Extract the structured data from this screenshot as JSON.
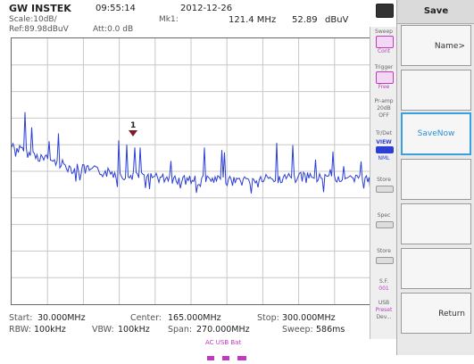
{
  "header": {
    "brand": "GW INSTEK",
    "time": "09:55:14",
    "date": "2012-12-26",
    "scale": "Scale:10dB/",
    "ref": "Ref:89.98dBuV",
    "att": "Att:0.0 dB",
    "marker_label": "Mk1:",
    "marker_freq": "121.4 MHz",
    "marker_level": "52.89",
    "marker_unit": "dBuV"
  },
  "trace": {
    "marker_number": "1",
    "color": "#2b3fd4"
  },
  "side": {
    "sweep": "Sweep",
    "sweep_mode": "Cont",
    "trigger": "Trigger",
    "trigger_mode": "Free",
    "preamp": "Pr-amp",
    "preamp_val": "20dB",
    "preamp_state": "OFF",
    "trace_label": "Tr/Det",
    "trace_mode": "VIEW",
    "trace_det": "NML",
    "s1": "Store",
    "s2": "Spec",
    "s3": "Store",
    "sf": "S.F.",
    "sf_val": "001",
    "usb": "USB",
    "usb_mode": "Preset",
    "dev": "Dev..."
  },
  "softkeys": {
    "title": "Save",
    "name": "Name>",
    "save_now": "SaveNow",
    "return": "Return"
  },
  "footer": {
    "start_label": "Start:",
    "start": "30.000MHz",
    "center_label": "Center:",
    "center": "165.000MHz",
    "stop_label": "Stop:",
    "stop": "300.000MHz",
    "rbw_label": "RBW:",
    "rbw": "100kHz",
    "vbw_label": "VBW:",
    "vbw": "100kHz",
    "span_label": "Span:",
    "span": "270.000MHz",
    "sweep_label": "Sweep:",
    "sweep": "586ms",
    "status": "AC USB Bat"
  }
}
